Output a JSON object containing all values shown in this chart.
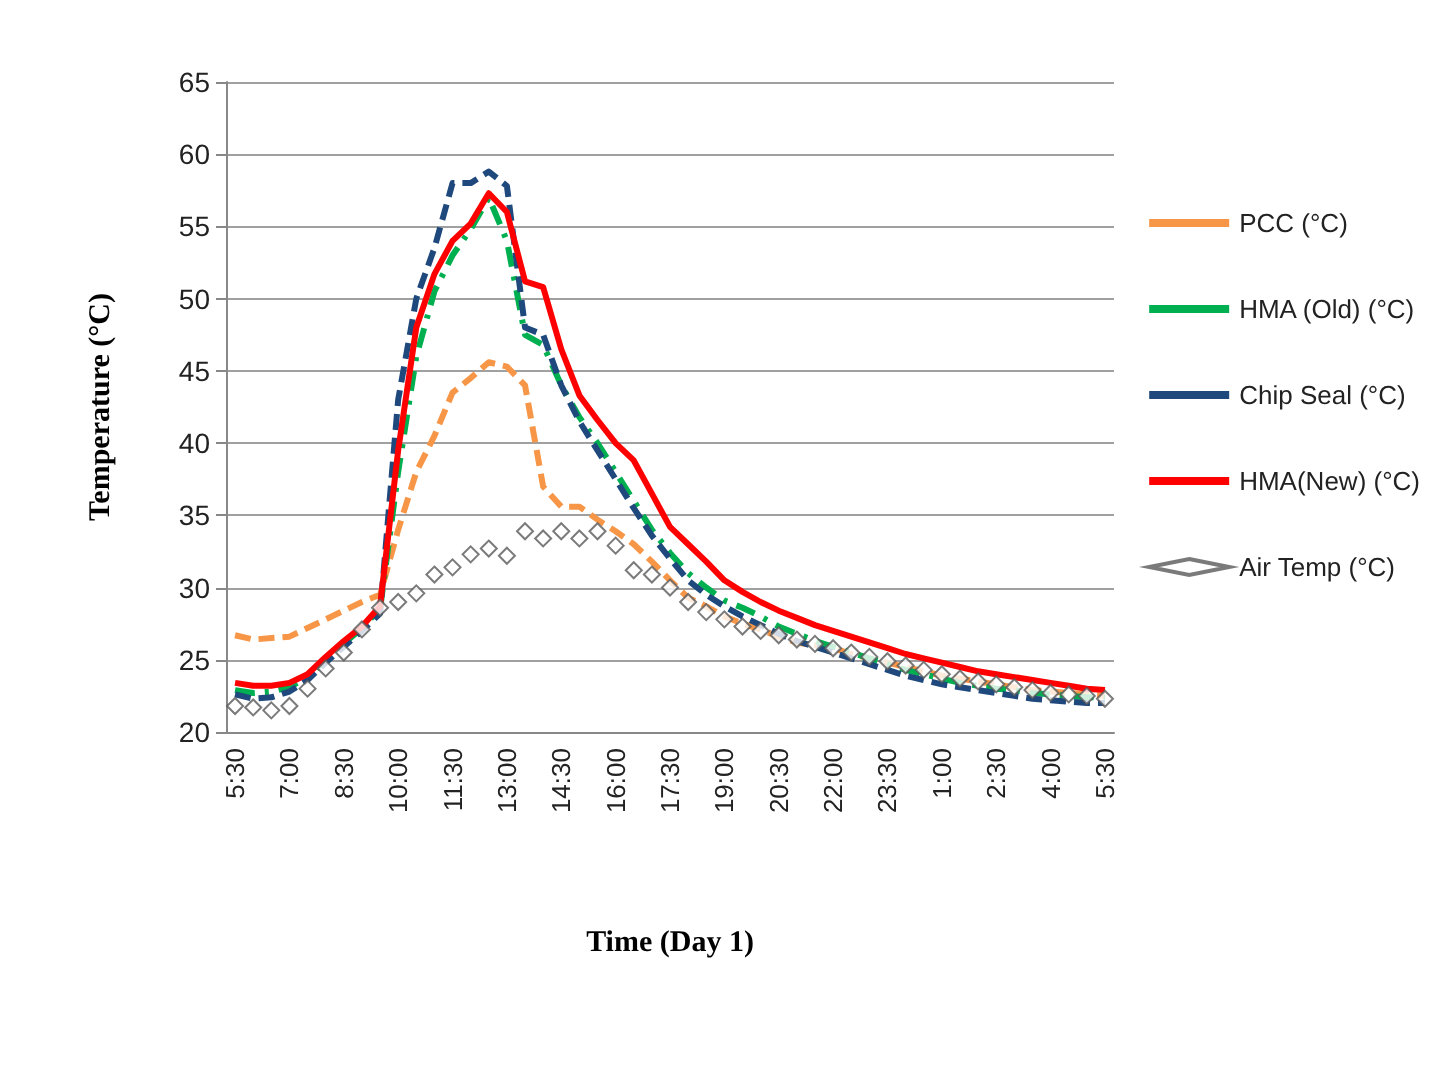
{
  "chart_data": {
    "type": "line",
    "xlabel": "Time (Day 1)",
    "ylabel": "Temperature (°C)",
    "categories": [
      "5:30",
      null,
      null,
      "7:00",
      null,
      null,
      "8:30",
      null,
      null,
      "10:00",
      null,
      null,
      "11:30",
      null,
      null,
      "13:00",
      null,
      null,
      "14:30",
      null,
      null,
      "16:00",
      null,
      null,
      "17:30",
      null,
      null,
      "19:00",
      null,
      null,
      "20:30",
      null,
      null,
      "22:00",
      null,
      null,
      "23:30",
      null,
      null,
      "1:00",
      null,
      null,
      "2:30",
      null,
      null,
      "4:00",
      null,
      null,
      "5:30"
    ],
    "ylim": [
      20,
      65
    ],
    "yticks": [
      20,
      25,
      30,
      35,
      40,
      45,
      50,
      55,
      60,
      65
    ],
    "grid": "y",
    "legend": "right",
    "series": [
      {
        "name": "PCC (°C)",
        "color": "#f79646",
        "line_style": "dashed",
        "marker": "none",
        "values": [
          26.7,
          26.4,
          26.5,
          26.6,
          27.2,
          27.8,
          28.4,
          29.0,
          29.5,
          34.0,
          38.0,
          40.5,
          43.5,
          44.5,
          45.6,
          45.3,
          44.0,
          37.0,
          35.6,
          35.6,
          34.7,
          33.9,
          33.0,
          31.8,
          30.5,
          29.3,
          28.7,
          28.0,
          27.5,
          27.1,
          26.6,
          26.2,
          26.0,
          25.8,
          25.4,
          25.1,
          24.8,
          24.5,
          24.2,
          23.9,
          23.7,
          23.5,
          23.3,
          23.1,
          22.9,
          22.8,
          22.7,
          22.6,
          22.5
        ]
      },
      {
        "name": "HMA (Old) (°C)",
        "color": "#00b050",
        "line_style": "dashdot",
        "marker": "none",
        "values": [
          22.9,
          22.7,
          22.8,
          23.1,
          23.8,
          25.0,
          26.1,
          27.2,
          28.5,
          38.0,
          46.0,
          50.5,
          53.0,
          54.8,
          57.0,
          54.0,
          47.5,
          46.8,
          44.0,
          41.8,
          40.0,
          38.0,
          36.0,
          34.0,
          32.4,
          31.0,
          30.0,
          29.1,
          28.6,
          28.0,
          27.3,
          26.8,
          26.3,
          25.9,
          25.5,
          25.1,
          24.7,
          24.3,
          24.0,
          23.7,
          23.4,
          23.2,
          23.0,
          22.9,
          22.7,
          22.6,
          22.5,
          22.4,
          22.4
        ]
      },
      {
        "name": "Chip Seal (°C)",
        "color": "#1f497d",
        "line_style": "dashed",
        "marker": "none",
        "values": [
          22.6,
          22.3,
          22.4,
          22.8,
          23.6,
          24.8,
          25.9,
          27.0,
          28.2,
          43.0,
          50.0,
          53.5,
          58.0,
          58.0,
          58.8,
          57.8,
          48.0,
          47.5,
          44.0,
          41.5,
          39.5,
          37.5,
          35.5,
          33.6,
          32.0,
          30.5,
          29.5,
          28.7,
          28.0,
          27.4,
          26.8,
          26.3,
          25.9,
          25.5,
          25.1,
          24.7,
          24.3,
          23.9,
          23.6,
          23.3,
          23.1,
          22.9,
          22.7,
          22.5,
          22.3,
          22.2,
          22.1,
          22.0,
          22.0
        ]
      },
      {
        "name": "HMA(New) (°C)",
        "color": "#ff0000",
        "line_style": "solid",
        "marker": "none",
        "values": [
          23.4,
          23.2,
          23.2,
          23.4,
          24.0,
          25.2,
          26.3,
          27.3,
          28.7,
          39.5,
          48.0,
          51.7,
          54.0,
          55.2,
          57.3,
          56.0,
          51.2,
          50.8,
          46.5,
          43.3,
          41.6,
          40.0,
          38.8,
          36.5,
          34.2,
          33.0,
          31.8,
          30.5,
          29.7,
          29.0,
          28.4,
          27.9,
          27.4,
          27.0,
          26.6,
          26.2,
          25.8,
          25.4,
          25.1,
          24.8,
          24.5,
          24.2,
          24.0,
          23.8,
          23.6,
          23.4,
          23.2,
          23.0,
          22.9
        ]
      },
      {
        "name": "Air Temp (°C)",
        "type": "scatter",
        "color": "#595959",
        "marker": "diamond",
        "values": [
          21.8,
          21.7,
          21.5,
          21.8,
          23.0,
          24.4,
          25.5,
          27.1,
          28.6,
          29.0,
          29.6,
          30.9,
          31.4,
          32.3,
          32.7,
          32.2,
          33.9,
          33.4,
          33.9,
          33.4,
          33.9,
          32.9,
          31.2,
          30.9,
          30.0,
          29.0,
          28.3,
          27.8,
          27.3,
          27.0,
          26.7,
          26.4,
          26.1,
          25.8,
          25.5,
          25.2,
          24.9,
          24.6,
          24.3,
          24.0,
          23.7,
          23.5,
          23.3,
          23.1,
          22.9,
          22.7,
          22.6,
          22.5,
          22.3
        ]
      }
    ]
  }
}
